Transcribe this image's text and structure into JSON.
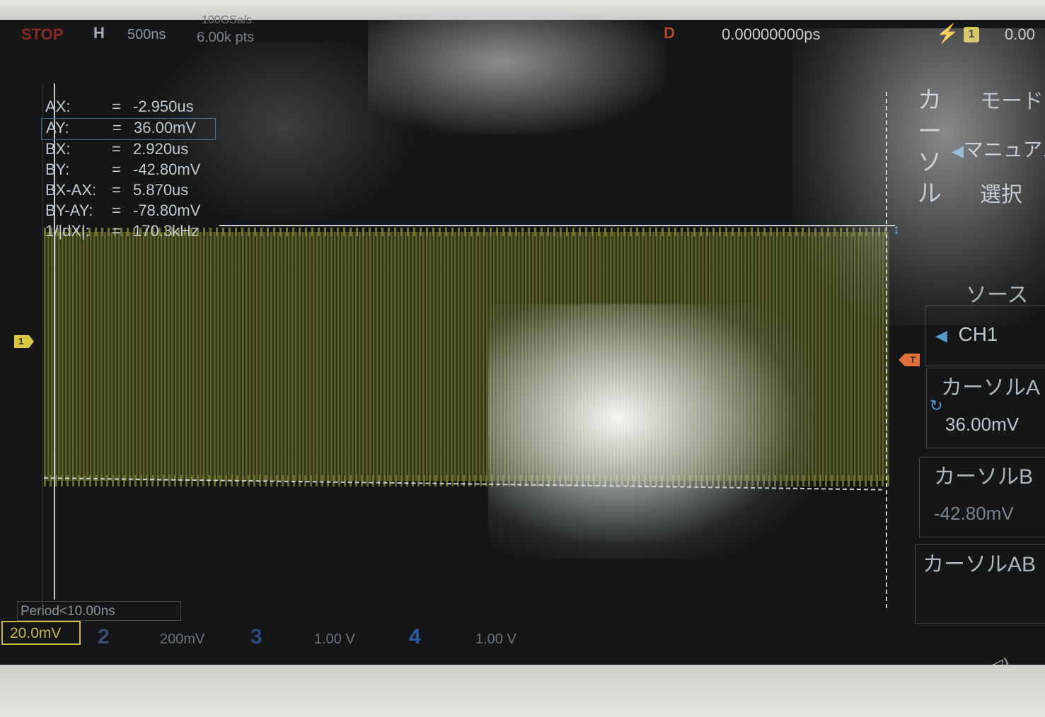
{
  "top_bar": {
    "run_state": "STOP",
    "horizontal_label": "H",
    "time_scale": "500ns",
    "sample_rate": "100GSa/s",
    "memory_depth": "6.00k pts",
    "delay_label": "D",
    "delay_value": "0.00000000ps",
    "trigger_icon": "edge-trigger-icon",
    "trigger_channel": "1",
    "trigger_level": "0.00"
  },
  "cursor_readout": [
    {
      "key": "AX:",
      "eq": "=",
      "value": "-2.950us"
    },
    {
      "key": "AY:",
      "eq": "=",
      "value": "36.00mV"
    },
    {
      "key": "BX:",
      "eq": "=",
      "value": "2.920us"
    },
    {
      "key": "BY:",
      "eq": "=",
      "value": "-42.80mV"
    },
    {
      "key": "BX-AX:",
      "eq": "=",
      "value": "5.870us"
    },
    {
      "key": "BY-AY:",
      "eq": "=",
      "value": "-78.80mV"
    },
    {
      "key": "1/|dX|:",
      "eq": "=",
      "value": "170.3kHz"
    }
  ],
  "markers": {
    "ch1": "1",
    "trigger": "T"
  },
  "status": {
    "period": "Period<10.00ns"
  },
  "channels": [
    {
      "num": "1",
      "scale": "20.0mV",
      "color": "#c4b84a"
    },
    {
      "num": "2",
      "scale": "200mV",
      "color": "#3a4a70"
    },
    {
      "num": "3",
      "scale": "1.00 V",
      "color": "#2a4a80"
    },
    {
      "num": "4",
      "scale": "1.00 V",
      "color": "#2c5aa0"
    }
  ],
  "menu": {
    "title": "カーソル",
    "mode_label": "モード",
    "mode_value": "マニュアル",
    "select_label": "選択",
    "source_label": "ソース",
    "source_value": "CH1",
    "cursor_a_label": "カーソルA",
    "cursor_a_value": "36.00mV",
    "cursor_b_label": "カーソルB",
    "cursor_b_value": "-42.80mV",
    "cursor_ab_label": "カーソルAB"
  },
  "colors": {
    "ch1": "#c4b84a",
    "cursor": "#c9cfd2",
    "trigger": "#e0703a",
    "accent": "#4f9ad0"
  }
}
